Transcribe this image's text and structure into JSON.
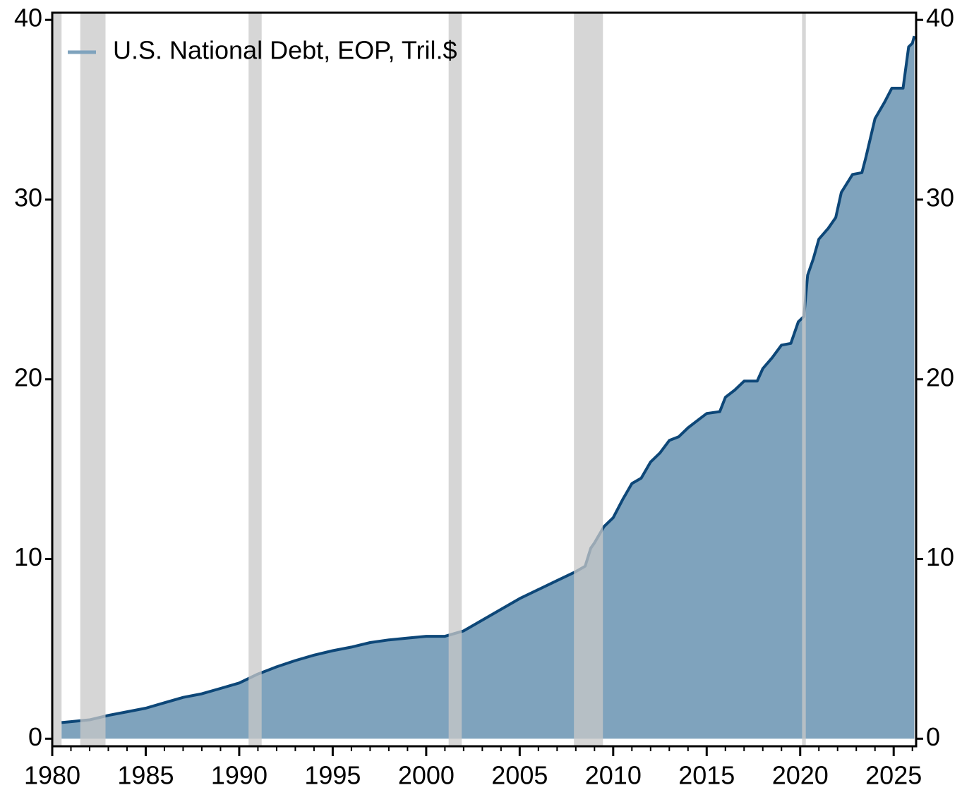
{
  "chart_data": {
    "type": "area",
    "series": [
      {
        "name": "U.S. National Debt, EOP, Tril.$",
        "color": "#0d4778",
        "fill": "#7fa3bd",
        "legend_color": "#7fa3bd",
        "x": [
          1980.5,
          1981,
          1982,
          1983,
          1984,
          1985,
          1986,
          1987,
          1988,
          1989,
          1990,
          1991,
          1992,
          1993,
          1994,
          1995,
          1996,
          1997,
          1998,
          1999,
          2000,
          2001,
          2002,
          2003,
          2004,
          2005,
          2006,
          2007,
          2008,
          2008.5,
          2008.8,
          2009,
          2009.5,
          2010,
          2010.5,
          2011,
          2011.5,
          2012,
          2012.5,
          2013,
          2013.5,
          2014,
          2014.5,
          2015,
          2015.7,
          2016,
          2016.5,
          2017,
          2017.7,
          2018,
          2018.5,
          2019,
          2019.5,
          2019.9,
          2020.2,
          2020.4,
          2020.7,
          2021,
          2021.5,
          2021.9,
          2022.2,
          2022.8,
          2023.3,
          2023.5,
          2024,
          2024.5,
          2024.9,
          2025.5,
          2025.8,
          2026.0,
          2026.1
        ],
        "values": [
          0.9,
          0.95,
          1.05,
          1.3,
          1.5,
          1.7,
          2.0,
          2.3,
          2.5,
          2.8,
          3.1,
          3.6,
          4.0,
          4.35,
          4.65,
          4.9,
          5.1,
          5.35,
          5.5,
          5.6,
          5.7,
          5.7,
          6.0,
          6.6,
          7.2,
          7.8,
          8.3,
          8.8,
          9.3,
          9.6,
          10.6,
          10.9,
          11.8,
          12.3,
          13.3,
          14.2,
          14.5,
          15.4,
          15.9,
          16.6,
          16.8,
          17.3,
          17.7,
          18.1,
          18.2,
          19.0,
          19.4,
          19.9,
          19.9,
          20.6,
          21.2,
          21.9,
          22.0,
          23.2,
          23.5,
          25.8,
          26.7,
          27.8,
          28.4,
          29.0,
          30.4,
          31.4,
          31.5,
          32.3,
          34.5,
          35.4,
          36.2,
          36.2,
          38.5,
          38.7,
          39.1
        ]
      }
    ],
    "recessions": [
      [
        1980.0,
        1980.5
      ],
      [
        1981.5,
        1982.85
      ],
      [
        1990.5,
        1991.2
      ],
      [
        2001.2,
        2001.9
      ],
      [
        2007.9,
        2009.45
      ],
      [
        2020.1,
        2020.3
      ]
    ],
    "recession_color": "#c8c8c8",
    "xlim": [
      1980,
      2026.2
    ],
    "xticks": [
      1980,
      1985,
      1990,
      1995,
      2000,
      2005,
      2010,
      2015,
      2020,
      2025
    ],
    "xminorticks": [
      1981,
      1982,
      1983,
      1984,
      1986,
      1987,
      1988,
      1989,
      1991,
      1992,
      1993,
      1994,
      1996,
      1997,
      1998,
      1999,
      2001,
      2002,
      2003,
      2004,
      2006,
      2007,
      2008,
      2009,
      2011,
      2012,
      2013,
      2014,
      2016,
      2017,
      2018,
      2019,
      2021,
      2022,
      2023,
      2024,
      2026
    ],
    "ylim": [
      -0.42,
      40.4
    ],
    "yticks": [
      0,
      10,
      20,
      30,
      40
    ],
    "y2lim": [
      -0.42,
      40.4
    ],
    "y2ticks": [
      0,
      10,
      20,
      30,
      40
    ],
    "legend": "top-left"
  }
}
